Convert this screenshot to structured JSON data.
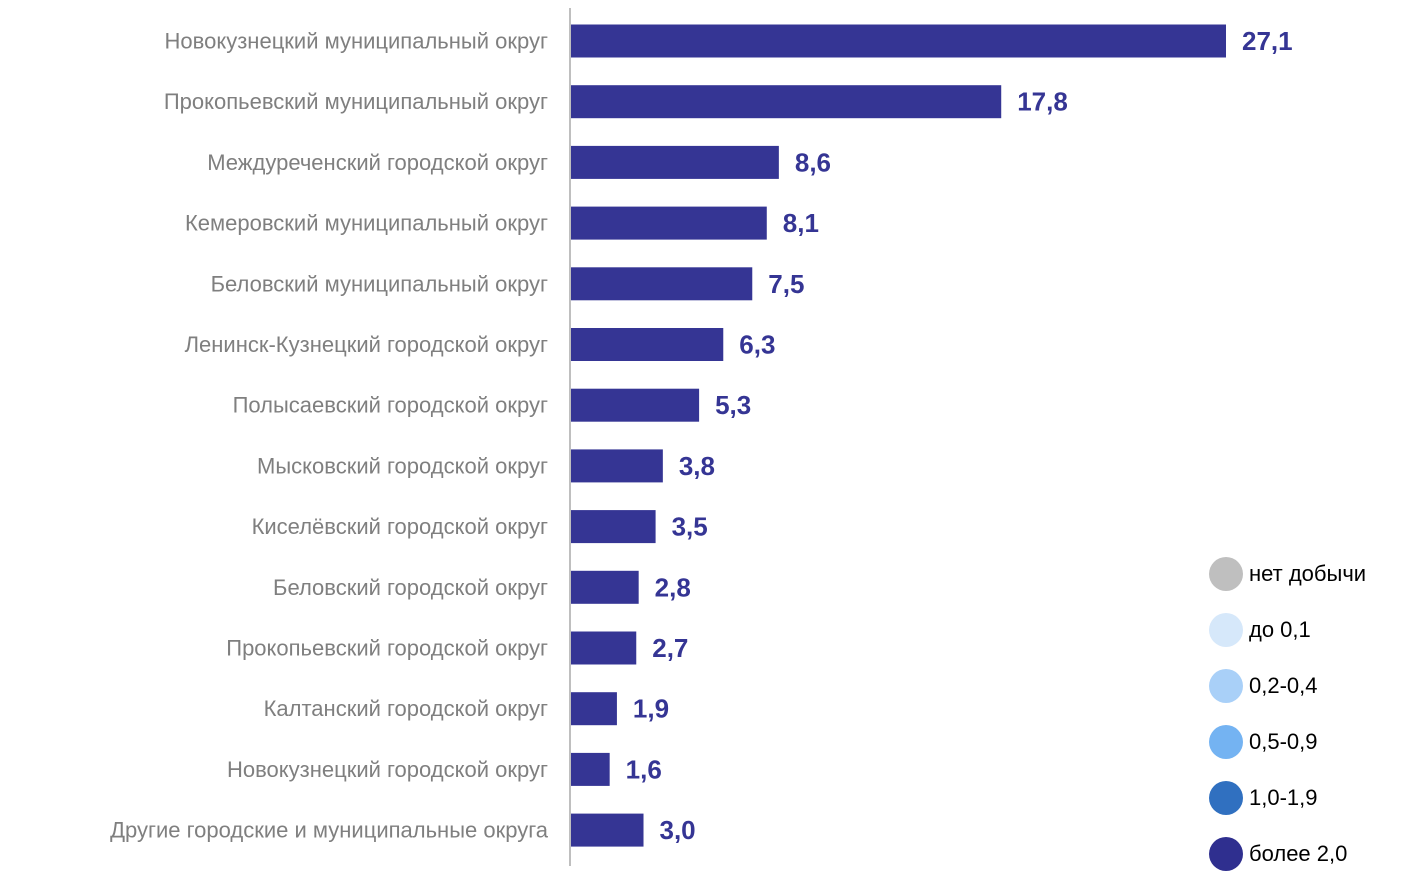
{
  "chart_data": {
    "type": "bar",
    "orientation": "horizontal",
    "categories": [
      "Новокузнецкий муниципальный округ",
      "Прокопьевский муниципальный округ",
      "Междуреченский городской округ",
      "Кемеровский муниципальный округ",
      "Беловский муниципальный округ",
      "Ленинск-Кузнецкий городской округ",
      "Полысаевский городской округ",
      "Мысковский городской округ",
      "Киселёвский городской округ",
      "Беловский городской округ",
      "Прокопьевский городской округ",
      "Калтанский городской округ",
      "Новокузнецкий городской округ",
      "Другие городские и муниципальные округа"
    ],
    "values": [
      27.1,
      17.8,
      8.6,
      8.1,
      7.5,
      6.3,
      5.3,
      3.8,
      3.5,
      2.8,
      2.7,
      1.9,
      1.6,
      3.0
    ],
    "value_labels": [
      "27,1",
      "17,8",
      "8,6",
      "8,1",
      "7,5",
      "6,3",
      "5,3",
      "3,8",
      "3,5",
      "2,8",
      "2,7",
      "1,9",
      "1,6",
      "3,0"
    ],
    "title": "",
    "xlabel": "",
    "ylabel": "",
    "xlim": [
      0,
      30
    ],
    "grid": false,
    "bar_color": "#353594",
    "label_color": "#353594",
    "legend_position": "bottom-right"
  },
  "legend": {
    "items": [
      {
        "label": "нет добычи",
        "color": "#bfbfbf"
      },
      {
        "label": "до 0,1",
        "color": "#d6e8fa"
      },
      {
        "label": "0,2-0,4",
        "color": "#a9d0f8"
      },
      {
        "label": "0,5-0,9",
        "color": "#74b3f2"
      },
      {
        "label": "1,0-1,9",
        "color": "#3070c0"
      },
      {
        "label": "более 2,0",
        "color": "#2f2f8f"
      }
    ]
  }
}
